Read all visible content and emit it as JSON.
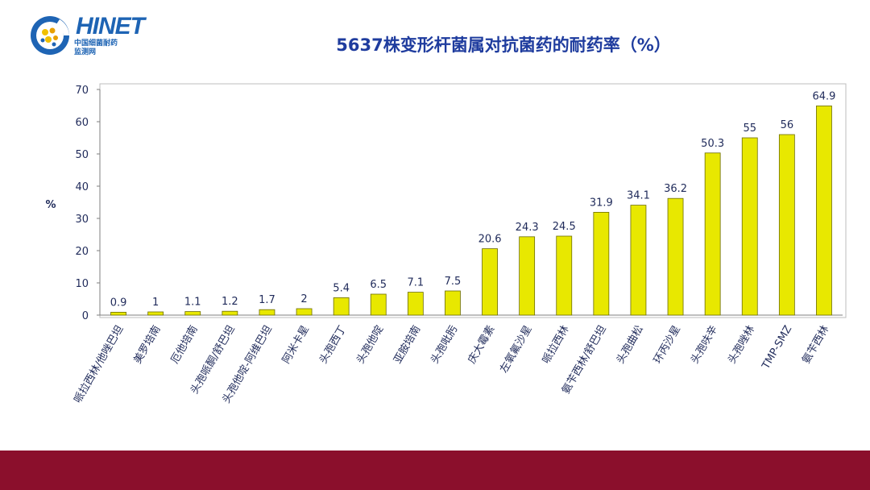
{
  "logo": {
    "word": "HINET",
    "sub_line1": "中国细菌耐药",
    "sub_line2": "监测网"
  },
  "chart_data": {
    "type": "bar",
    "title": "5637株变形杆菌属对抗菌药的耐药率（%）",
    "ylabel": "%",
    "ylim": [
      0,
      70
    ],
    "yticks": [
      0,
      10,
      20,
      30,
      40,
      50,
      60,
      70
    ],
    "categories": [
      "哌拉西林/他唑巴坦",
      "美罗培南",
      "厄他培南",
      "头孢哌酮/舒巴坦",
      "头孢他啶-阿维巴坦",
      "阿米卡星",
      "头孢西丁",
      "头孢他啶",
      "亚胺培南",
      "头孢吡肟",
      "庆大霉素",
      "左氧氟沙星",
      "哌拉西林",
      "氨苄西林/舒巴坦",
      "头孢曲松",
      "环丙沙星",
      "头孢呋辛",
      "头孢唑林",
      "TMP-SMZ",
      "氨苄西林"
    ],
    "values": [
      0.9,
      1,
      1.1,
      1.2,
      1.7,
      2,
      5.4,
      6.5,
      7.1,
      7.5,
      20.6,
      24.3,
      24.5,
      31.9,
      34.1,
      36.2,
      50.3,
      55,
      56,
      64.9
    ],
    "data_labels": [
      "0.9",
      "1",
      "1.1",
      "1.2",
      "1.7",
      "2",
      "5.4",
      "6.5",
      "7.1",
      "7.5",
      "20.6",
      "24.3",
      "24.5",
      "31.9",
      "34.1",
      "36.2",
      "50.3",
      "55",
      "56",
      "64.9"
    ],
    "bar_color": "#e8e800",
    "grid": false
  }
}
